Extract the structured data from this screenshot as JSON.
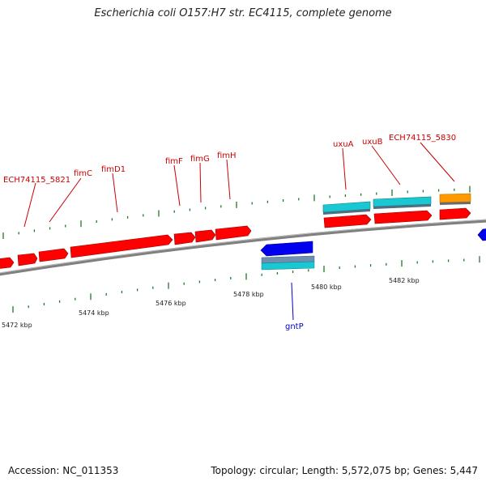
{
  "title": "Escherichia coli O157:H7 str. EC4115, complete genome",
  "footer": {
    "accession": "Accession: NC_011353",
    "summary": "Topology: circular; Length: 5,572,075 bp; Genes: 5,447"
  },
  "colors": {
    "backbone": "#808080",
    "forward_gene": "#ff0000",
    "reverse_gene": "#0000ee",
    "cyan_gene": "#19c8d2",
    "slate_gene": "#6f8fb0",
    "orange_gene": "#ff9900",
    "tick_mark": "#1f7a1f",
    "label_forward": "#cc0000",
    "label_reverse": "#0000cc"
  },
  "scale_labels": [
    {
      "text": "5472 kbp"
    },
    {
      "text": "5474 kbp"
    },
    {
      "text": "5476 kbp"
    },
    {
      "text": "5478 kbp"
    },
    {
      "text": "5480 kbp"
    },
    {
      "text": "5482 kbp"
    }
  ],
  "gene_labels": [
    {
      "text": "ECH74115_5821",
      "strand": "forward"
    },
    {
      "text": "fimC",
      "strand": "forward"
    },
    {
      "text": "fimD1",
      "strand": "forward"
    },
    {
      "text": "fimF",
      "strand": "forward"
    },
    {
      "text": "fimG",
      "strand": "forward"
    },
    {
      "text": "fimH",
      "strand": "forward"
    },
    {
      "text": "uxuA",
      "strand": "forward"
    },
    {
      "text": "uxuB",
      "strand": "forward"
    },
    {
      "text": "ECH74115_5830",
      "strand": "forward"
    },
    {
      "text": "gntP",
      "strand": "reverse"
    }
  ]
}
